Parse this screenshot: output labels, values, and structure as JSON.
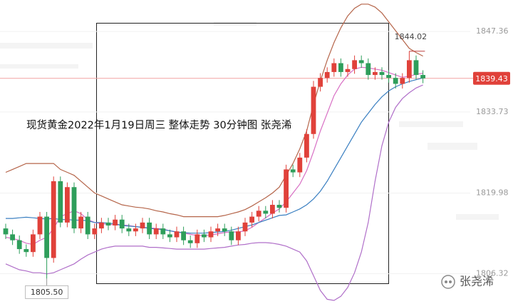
{
  "chart_data": {
    "type": "candlestick",
    "title": "现货黄金2022年1月19日周三  整体走势 30分钟图 张尧浠",
    "watermark": "张尧浠",
    "ylim": [
      1801.2,
      1852.7
    ],
    "yticks": [
      1806.32,
      1819.98,
      1833.73,
      1847.36
    ],
    "grid": true,
    "up_color": "#e0413a",
    "down_color": "#2e9e5b",
    "last_price": 1839.43,
    "high_marker": 1844.02,
    "low_marker": {
      "value": 1805.5,
      "label": "1805.50"
    },
    "open": [
      1814,
      1813,
      1812,
      1810.5,
      1810,
      1813,
      1816,
      1809,
      1822,
      1815,
      1821,
      1814,
      1816,
      1813,
      1814,
      1815,
      1814.5,
      1815.5,
      1814,
      1813.5,
      1814,
      1815,
      1813,
      1814,
      1813,
      1812.5,
      1813.5,
      1812,
      1811.5,
      1813,
      1812.5,
      1813.5,
      1814,
      1813.5,
      1812,
      1813.5,
      1815,
      1816,
      1817,
      1816.5,
      1818,
      1817.5,
      1824,
      1823.5,
      1826,
      1830,
      1838,
      1839.5,
      1840.5,
      1842,
      1840.5,
      1841,
      1842.5,
      1842,
      1840,
      1840.5,
      1840,
      1839.5,
      1838.5,
      1839.5,
      1842.5,
      1840
    ],
    "high": [
      1814.8,
      1813.8,
      1812.8,
      1811.3,
      1813.8,
      1816.8,
      1816.8,
      1822.8,
      1822.8,
      1821.8,
      1821.8,
      1816.8,
      1816.8,
      1814.8,
      1815.8,
      1815.8,
      1816.3,
      1816.3,
      1814.8,
      1814.8,
      1815.8,
      1815.8,
      1814.8,
      1814.8,
      1813.8,
      1814.3,
      1814.3,
      1812.8,
      1813.8,
      1813.8,
      1814.3,
      1814.8,
      1814.8,
      1814.3,
      1814.3,
      1815.8,
      1816.8,
      1817.8,
      1817.8,
      1818.8,
      1818.8,
      1824.8,
      1824.8,
      1826.8,
      1830.8,
      1839,
      1840.3,
      1841.3,
      1842.8,
      1842.8,
      1841.8,
      1843.3,
      1843.3,
      1842.8,
      1841.3,
      1841.3,
      1840.8,
      1840.3,
      1840.3,
      1844.02,
      1843.3,
      1840.8
    ],
    "low": [
      1812.2,
      1811.2,
      1809.7,
      1809.2,
      1809.2,
      1812.2,
      1805.5,
      1808.2,
      1814.2,
      1814.2,
      1813.2,
      1813.2,
      1812.2,
      1812.2,
      1813.2,
      1813.7,
      1813.7,
      1813.2,
      1812.7,
      1812.7,
      1813.2,
      1812.2,
      1812.2,
      1812.2,
      1811.7,
      1811.7,
      1811.2,
      1810.7,
      1810.7,
      1811.7,
      1811.7,
      1812.7,
      1812.7,
      1811.2,
      1811.2,
      1812.7,
      1814.2,
      1815.2,
      1815.7,
      1815.7,
      1816.7,
      1816.7,
      1822.7,
      1822.7,
      1825.2,
      1829.2,
      1837.2,
      1838.7,
      1839.7,
      1839.7,
      1839.7,
      1840.2,
      1841.2,
      1839.2,
      1839.2,
      1839.2,
      1838.7,
      1837.7,
      1837.7,
      1838.7,
      1839.2,
      1838.6
    ],
    "close": [
      1813,
      1812,
      1810.5,
      1810,
      1813,
      1816,
      1809,
      1822,
      1815,
      1821,
      1814,
      1816,
      1813,
      1814,
      1815,
      1814.5,
      1815.5,
      1814,
      1813.5,
      1814,
      1815,
      1813,
      1814,
      1813,
      1812.5,
      1813.5,
      1812,
      1811.5,
      1813,
      1812.5,
      1813.5,
      1814,
      1813.5,
      1812,
      1813.5,
      1815,
      1816,
      1817,
      1816.5,
      1818,
      1817.5,
      1824,
      1823.5,
      1826,
      1830,
      1838,
      1839.5,
      1840.5,
      1842,
      1840.5,
      1841,
      1842.5,
      1842,
      1840,
      1840.5,
      1840,
      1839.5,
      1838.5,
      1839.5,
      1842.5,
      1840,
      1839.43
    ],
    "series": [
      {
        "color": "#b5654a",
        "values": [
          1823.5,
          1824,
          1824.5,
          1825,
          1825,
          1825,
          1825,
          1825,
          1824,
          1823.5,
          1823,
          1822,
          1821,
          1820,
          1819.5,
          1819,
          1818.5,
          1818,
          1817.8,
          1817.6,
          1817.5,
          1817.3,
          1817,
          1816.8,
          1816.5,
          1816.3,
          1816,
          1816,
          1816,
          1816,
          1816,
          1816,
          1816.2,
          1816.5,
          1816.8,
          1817.2,
          1817.8,
          1818.5,
          1819.2,
          1820,
          1821,
          1823,
          1825,
          1827.5,
          1830.5,
          1835,
          1839,
          1842.5,
          1845.5,
          1848,
          1850,
          1851.3,
          1852,
          1852,
          1851.5,
          1850.5,
          1849,
          1847.5,
          1846,
          1844.5,
          1843.8,
          1843.2
        ]
      },
      {
        "color": "#b06fc9",
        "values": [
          1808,
          1807.5,
          1807,
          1806.8,
          1806.5,
          1806.5,
          1806.3,
          1806.5,
          1807,
          1807.5,
          1808,
          1808.8,
          1809.5,
          1810,
          1810.5,
          1810.8,
          1811,
          1811,
          1811,
          1811,
          1811,
          1810.8,
          1810.8,
          1810.7,
          1810.6,
          1810.5,
          1810.5,
          1810.5,
          1810.5,
          1810.5,
          1810.6,
          1810.7,
          1810.8,
          1811,
          1811.2,
          1811.3,
          1811.5,
          1811.6,
          1811.6,
          1811.5,
          1811.3,
          1811,
          1810.5,
          1810,
          1808.5,
          1806,
          1803.5,
          1802,
          1801.8,
          1802.5,
          1804,
          1806.5,
          1810,
          1815,
          1822,
          1828,
          1832,
          1834.5,
          1836,
          1837,
          1837.8,
          1838.3
        ]
      },
      {
        "color": "#d86fc4",
        "values": [
          1812.5,
          1812.3,
          1812,
          1811.5,
          1811.3,
          1812,
          1812.5,
          1814,
          1816,
          1816.5,
          1817,
          1816.5,
          1815.5,
          1815,
          1814.8,
          1814.7,
          1814.6,
          1814.6,
          1814.5,
          1814.3,
          1814.2,
          1814.1,
          1814,
          1813.9,
          1813.6,
          1813.4,
          1813.2,
          1813,
          1812.8,
          1812.8,
          1812.9,
          1813.1,
          1813.3,
          1813.4,
          1813.4,
          1813.6,
          1814.2,
          1815,
          1815.8,
          1816.6,
          1817.3,
          1818.5,
          1820,
          1821.5,
          1823.8,
          1827,
          1830.5,
          1833.5,
          1836.5,
          1838.5,
          1840,
          1841,
          1841.3,
          1841.2,
          1841,
          1840.8,
          1840.4,
          1840,
          1839.6,
          1839.8,
          1840.1,
          1840.3
        ]
      },
      {
        "color": "#3a7fc1",
        "values": [
          1815.7,
          1815.7,
          1815.8,
          1815.9,
          1815.8,
          1815.7,
          1815.6,
          1815.7,
          1815.5,
          1815.5,
          1815.4,
          1815.4,
          1815.3,
          1815,
          1815,
          1814.9,
          1814.8,
          1814.5,
          1814.4,
          1814.3,
          1814.2,
          1814,
          1813.9,
          1813.8,
          1813.6,
          1813.4,
          1813.3,
          1813.2,
          1813.2,
          1813.2,
          1813.3,
          1813.4,
          1813.5,
          1813.7,
          1814,
          1814.3,
          1814.6,
          1815,
          1815.4,
          1815.8,
          1816.2,
          1816.3,
          1816.8,
          1817.3,
          1818,
          1819,
          1820.3,
          1822,
          1824,
          1826,
          1828,
          1830,
          1832,
          1833.5,
          1835,
          1836.3,
          1837.3,
          1838,
          1838.5,
          1838.9,
          1839.2,
          1839.5
        ]
      }
    ]
  }
}
